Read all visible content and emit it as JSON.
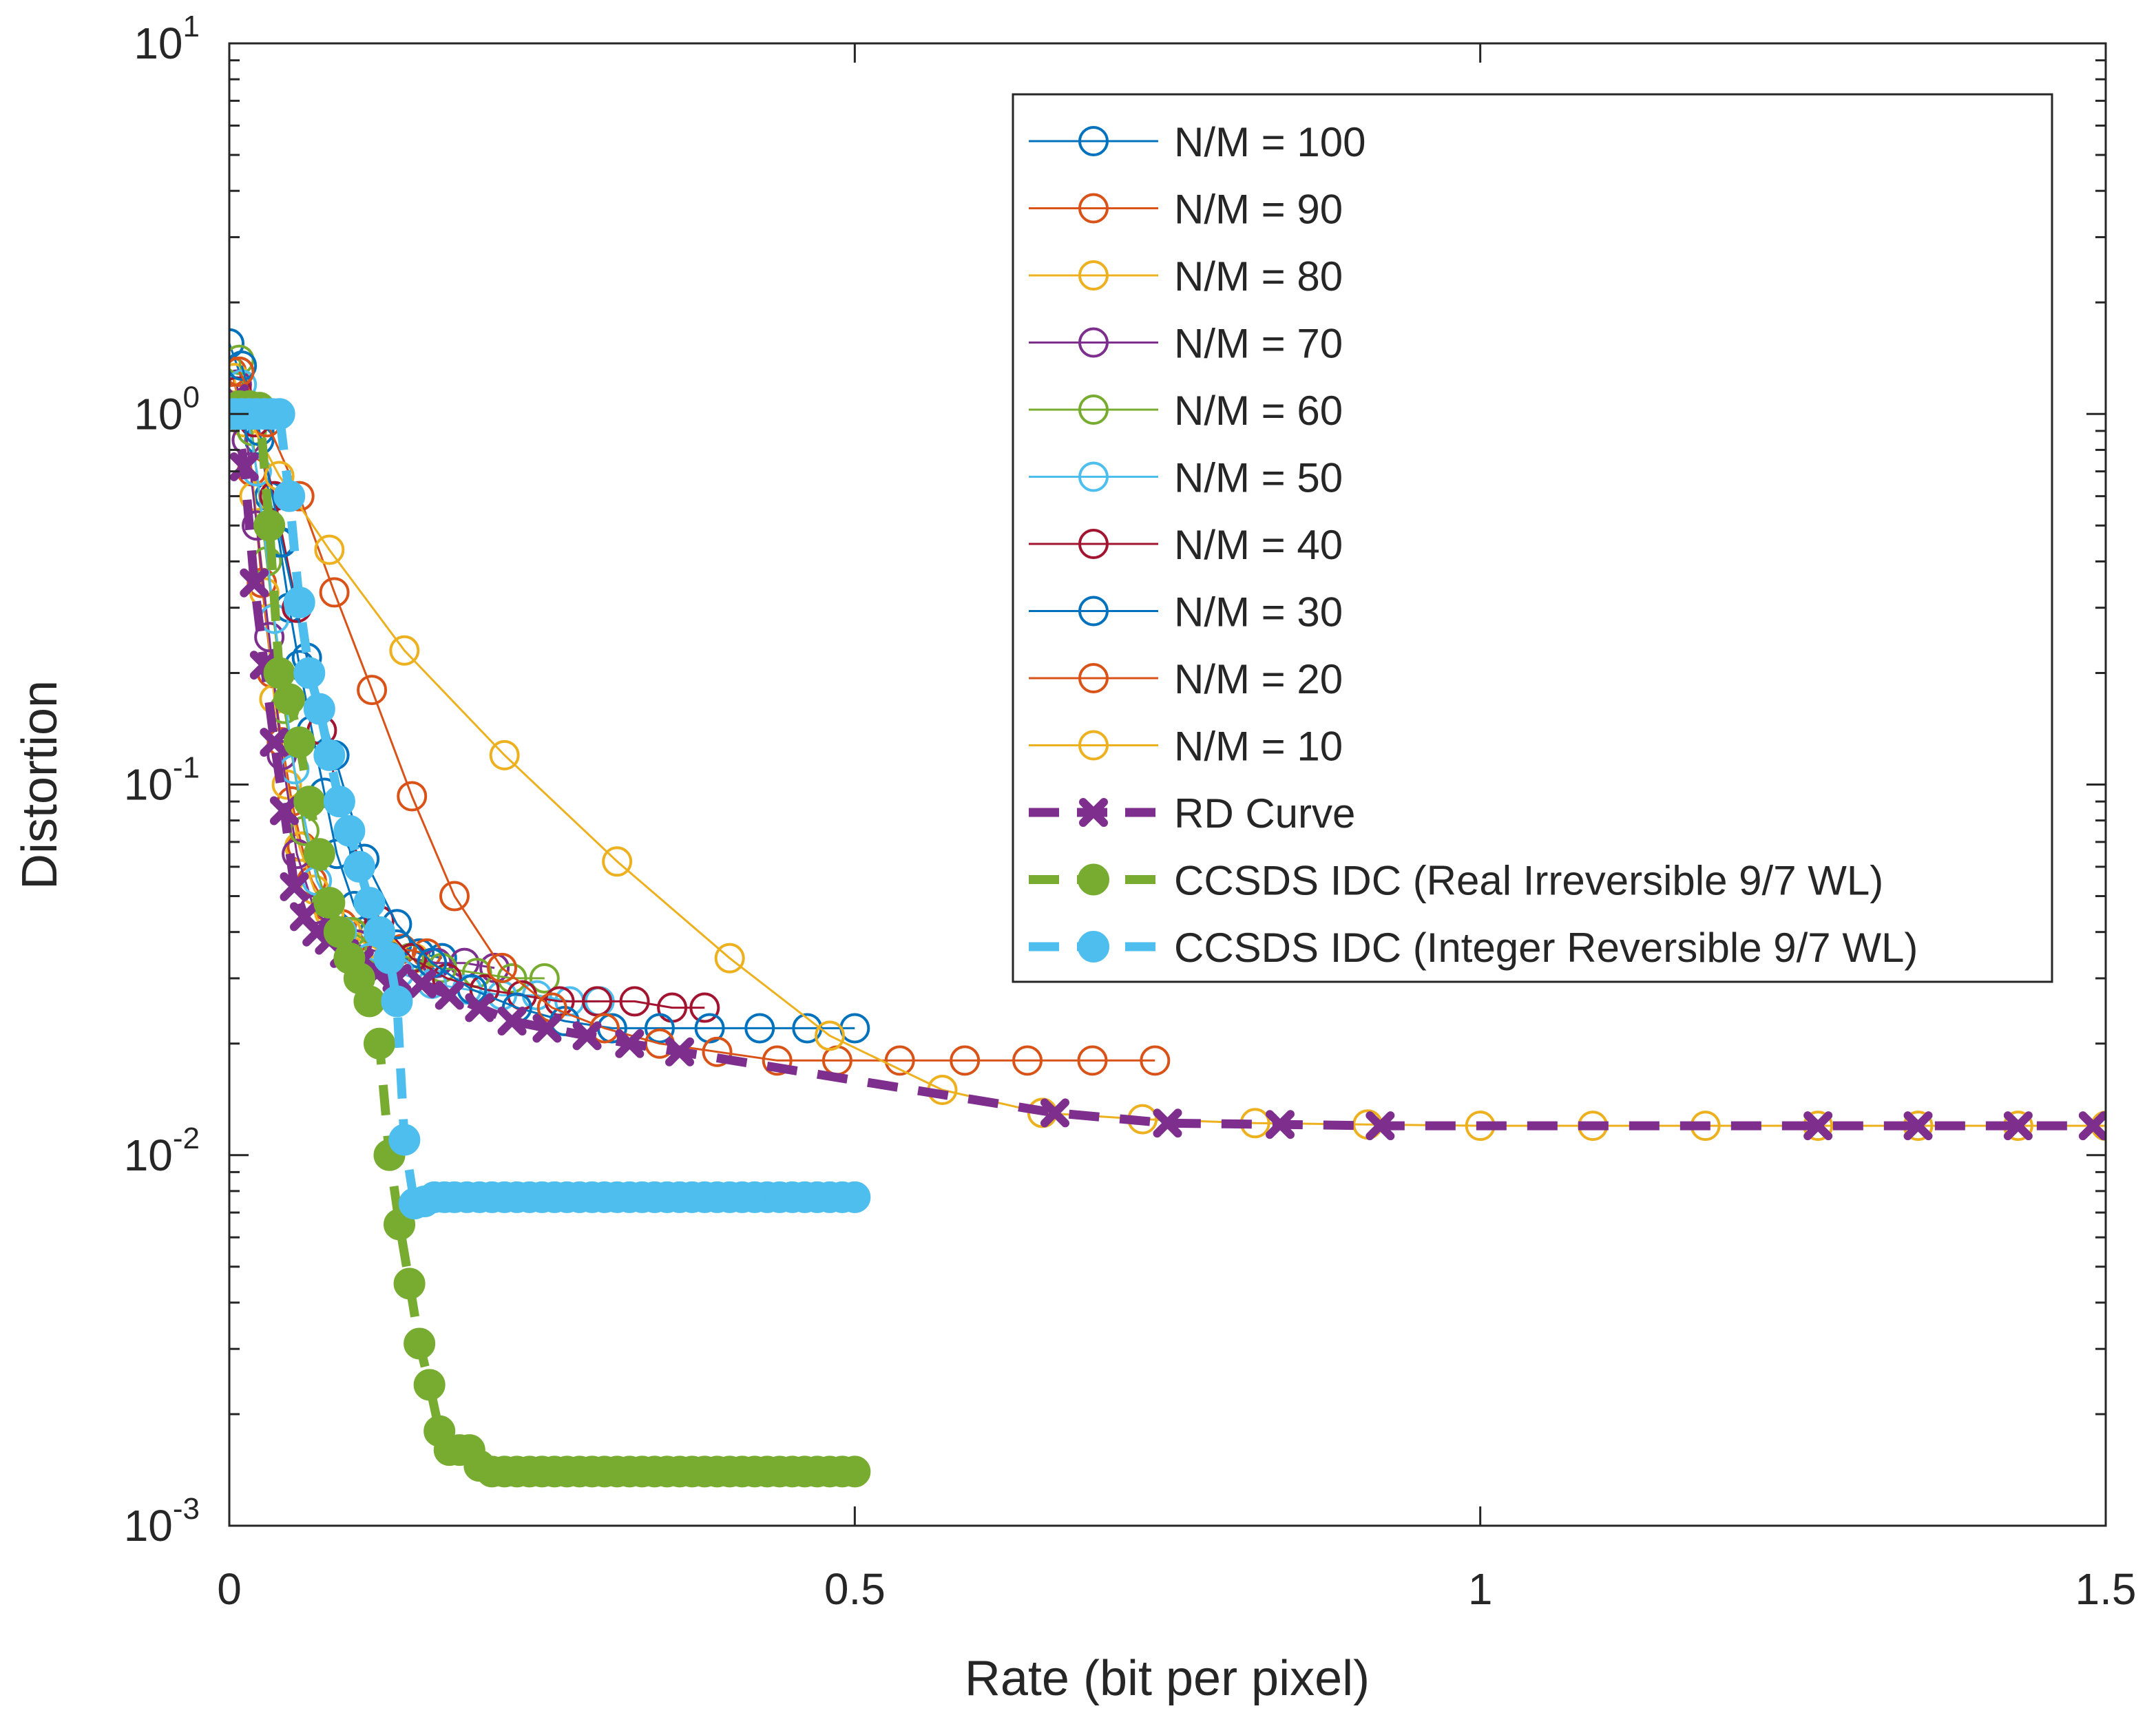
{
  "chart_data": {
    "type": "line",
    "title": "",
    "xlabel": "Rate (bit per pixel)",
    "ylabel": "Distortion",
    "xscale": "linear",
    "yscale": "log",
    "xlim": [
      0,
      1.5
    ],
    "ylim": [
      0.001,
      10
    ],
    "grid": false,
    "legend_position": "top-right",
    "x_ticks": [
      {
        "value": 0,
        "label": "0"
      },
      {
        "value": 0.5,
        "label": "0.5"
      },
      {
        "value": 1,
        "label": "1"
      },
      {
        "value": 1.5,
        "label": "1.5"
      }
    ],
    "y_ticks": [
      {
        "value": 0.001,
        "base": "10",
        "exp": "-3"
      },
      {
        "value": 0.01,
        "base": "10",
        "exp": "-2"
      },
      {
        "value": 0.1,
        "base": "10",
        "exp": "-1"
      },
      {
        "value": 1,
        "base": "10",
        "exp": "0"
      },
      {
        "value": 10,
        "base": "10",
        "exp": "1"
      }
    ],
    "series": [
      {
        "name": "N/M = 100",
        "color": "#0072BD",
        "marker": "circle",
        "line": "solid",
        "x": [
          0.0,
          0.008,
          0.016,
          0.024,
          0.032,
          0.04,
          0.048,
          0.056,
          0.066,
          0.076,
          0.086,
          0.1,
          0.116,
          0.134,
          0.152,
          0.17
        ],
        "y": [
          1.55,
          1.3,
          1.05,
          0.85,
          0.6,
          0.45,
          0.3,
          0.21,
          0.14,
          0.095,
          0.065,
          0.047,
          0.04,
          0.037,
          0.035,
          0.034
        ]
      },
      {
        "name": "N/M = 90",
        "color": "#D95319",
        "marker": "circle",
        "line": "solid",
        "x": [
          0.002,
          0.01,
          0.018,
          0.026,
          0.034,
          0.042,
          0.05,
          0.058,
          0.066,
          0.078,
          0.09,
          0.104,
          0.12,
          0.138,
          0.158
        ],
        "y": [
          1.3,
          1.0,
          0.7,
          0.35,
          0.2,
          0.13,
          0.09,
          0.068,
          0.055,
          0.047,
          0.042,
          0.039,
          0.037,
          0.036,
          0.035
        ]
      },
      {
        "name": "N/M = 80",
        "color": "#EDB120",
        "marker": "circle",
        "line": "solid",
        "x": [
          0.004,
          0.012,
          0.02,
          0.028,
          0.036,
          0.046,
          0.056,
          0.068,
          0.08,
          0.094,
          0.11,
          0.128,
          0.148
        ],
        "y": [
          1.25,
          0.95,
          0.6,
          0.33,
          0.17,
          0.1,
          0.068,
          0.052,
          0.045,
          0.04,
          0.037,
          0.035,
          0.034
        ]
      },
      {
        "name": "N/M = 70",
        "color": "#7E2F8E",
        "marker": "circle",
        "line": "solid",
        "x": [
          0.006,
          0.014,
          0.022,
          0.032,
          0.042,
          0.054,
          0.068,
          0.084,
          0.102,
          0.122,
          0.144,
          0.166,
          0.188,
          0.212
        ],
        "y": [
          1.2,
          0.85,
          0.5,
          0.25,
          0.12,
          0.065,
          0.046,
          0.04,
          0.037,
          0.035,
          0.034,
          0.033,
          0.033,
          0.032
        ]
      },
      {
        "name": "N/M = 60",
        "color": "#77AC30",
        "marker": "circle",
        "line": "solid",
        "x": [
          0.008,
          0.018,
          0.03,
          0.044,
          0.06,
          0.078,
          0.098,
          0.12,
          0.144,
          0.17,
          0.198,
          0.226,
          0.252
        ],
        "y": [
          1.4,
          0.9,
          0.4,
          0.16,
          0.075,
          0.048,
          0.04,
          0.036,
          0.034,
          0.032,
          0.031,
          0.03,
          0.03
        ]
      },
      {
        "name": "N/M = 50",
        "color": "#4DBEEE",
        "marker": "circle",
        "line": "solid",
        "x": [
          0.01,
          0.022,
          0.036,
          0.052,
          0.07,
          0.09,
          0.112,
          0.136,
          0.162,
          0.19,
          0.218,
          0.246,
          0.272,
          0.296
        ],
        "y": [
          1.2,
          0.7,
          0.28,
          0.11,
          0.055,
          0.04,
          0.034,
          0.031,
          0.029,
          0.028,
          0.027,
          0.027,
          0.026,
          0.026
        ]
      },
      {
        "name": "N/M = 40",
        "color": "#A2142F",
        "marker": "circle",
        "line": "solid",
        "x": [
          0.006,
          0.02,
          0.036,
          0.054,
          0.074,
          0.096,
          0.12,
          0.146,
          0.174,
          0.204,
          0.234,
          0.264,
          0.294,
          0.324,
          0.354,
          0.38
        ],
        "y": [
          1.15,
          0.95,
          0.6,
          0.3,
          0.14,
          0.075,
          0.043,
          0.034,
          0.03,
          0.028,
          0.027,
          0.026,
          0.026,
          0.026,
          0.025,
          0.025
        ]
      },
      {
        "name": "N/M = 30",
        "color": "#0072BD",
        "marker": "circle",
        "line": "solid",
        "x": [
          0.01,
          0.024,
          0.042,
          0.062,
          0.084,
          0.108,
          0.134,
          0.162,
          0.194,
          0.23,
          0.268,
          0.306,
          0.344,
          0.384,
          0.424,
          0.462,
          0.5
        ],
        "y": [
          1.35,
          0.9,
          0.45,
          0.22,
          0.12,
          0.063,
          0.042,
          0.033,
          0.028,
          0.025,
          0.023,
          0.022,
          0.022,
          0.022,
          0.022,
          0.022,
          0.022
        ]
      },
      {
        "name": "N/M = 20",
        "color": "#D95319",
        "marker": "circle",
        "line": "solid",
        "x": [
          0.008,
          0.03,
          0.056,
          0.084,
          0.114,
          0.146,
          0.18,
          0.218,
          0.258,
          0.3,
          0.344,
          0.39,
          0.438,
          0.486,
          0.536,
          0.588,
          0.638,
          0.69,
          0.74
        ],
        "y": [
          1.3,
          0.95,
          0.6,
          0.33,
          0.18,
          0.093,
          0.05,
          0.032,
          0.025,
          0.022,
          0.02,
          0.019,
          0.018,
          0.018,
          0.018,
          0.018,
          0.018,
          0.018,
          0.018
        ]
      },
      {
        "name": "N/M = 10",
        "color": "#EDB120",
        "marker": "circle",
        "line": "solid",
        "x": [
          0.01,
          0.04,
          0.08,
          0.14,
          0.22,
          0.31,
          0.4,
          0.48,
          0.57,
          0.65,
          0.73,
          0.82,
          0.91,
          1.0,
          1.09,
          1.18,
          1.27,
          1.35,
          1.43,
          1.5
        ],
        "y": [
          1.05,
          0.68,
          0.43,
          0.23,
          0.12,
          0.062,
          0.034,
          0.021,
          0.015,
          0.013,
          0.0125,
          0.0122,
          0.0121,
          0.012,
          0.012,
          0.012,
          0.012,
          0.012,
          0.012,
          0.012
        ]
      },
      {
        "name": "RD Curve",
        "color": "#7E2F8E",
        "marker": "x",
        "line": "dashed",
        "x": [
          0.004,
          0.012,
          0.02,
          0.028,
          0.036,
          0.044,
          0.052,
          0.06,
          0.07,
          0.08,
          0.092,
          0.104,
          0.118,
          0.134,
          0.154,
          0.176,
          0.2,
          0.226,
          0.254,
          0.286,
          0.32,
          0.36,
          0.66,
          0.75,
          0.84,
          0.92,
          1.27,
          1.35,
          1.43,
          1.49
        ],
        "y": [
          1.1,
          0.72,
          0.35,
          0.21,
          0.13,
          0.085,
          0.053,
          0.044,
          0.04,
          0.038,
          0.035,
          0.033,
          0.031,
          0.03,
          0.029,
          0.027,
          0.025,
          0.023,
          0.022,
          0.021,
          0.02,
          0.019,
          0.013,
          0.0122,
          0.0121,
          0.012,
          0.012,
          0.012,
          0.012,
          0.012
        ]
      },
      {
        "name": "CCSDS IDC (Real Irreversible 9/7 WL)",
        "color": "#77AC30",
        "marker": "dot",
        "line": "dashed",
        "x": [
          0.008,
          0.016,
          0.024,
          0.032,
          0.04,
          0.048,
          0.056,
          0.064,
          0.072,
          0.08,
          0.088,
          0.096,
          0.104,
          0.112,
          0.12,
          0.128,
          0.136,
          0.144,
          0.152,
          0.16,
          0.168,
          0.176,
          0.184,
          0.192,
          0.2,
          0.21,
          0.22,
          0.23,
          0.24,
          0.25,
          0.26,
          0.27,
          0.28,
          0.29,
          0.3,
          0.31,
          0.32,
          0.33,
          0.34,
          0.35,
          0.36,
          0.37,
          0.38,
          0.39,
          0.4,
          0.41,
          0.42,
          0.43,
          0.44,
          0.45,
          0.46,
          0.47,
          0.48,
          0.49,
          0.5
        ],
        "y": [
          1.05,
          1.05,
          1.04,
          0.5,
          0.2,
          0.17,
          0.13,
          0.09,
          0.065,
          0.048,
          0.04,
          0.034,
          0.03,
          0.026,
          0.02,
          0.01,
          0.0065,
          0.0045,
          0.0031,
          0.0024,
          0.0018,
          0.0016,
          0.0016,
          0.0016,
          0.00145,
          0.0014,
          0.0014,
          0.0014,
          0.0014,
          0.0014,
          0.0014,
          0.0014,
          0.0014,
          0.0014,
          0.0014,
          0.0014,
          0.0014,
          0.0014,
          0.0014,
          0.0014,
          0.0014,
          0.0014,
          0.0014,
          0.0014,
          0.0014,
          0.0014,
          0.0014,
          0.0014,
          0.0014,
          0.0014,
          0.0014,
          0.0014,
          0.0014,
          0.0014,
          0.0014
        ]
      },
      {
        "name": "CCSDS IDC (Integer Reversible 9/7 WL)",
        "color": "#4DBEEE",
        "marker": "dot",
        "line": "dashed",
        "x": [
          0.004,
          0.01,
          0.016,
          0.022,
          0.028,
          0.034,
          0.04,
          0.048,
          0.056,
          0.064,
          0.072,
          0.08,
          0.088,
          0.096,
          0.104,
          0.112,
          0.12,
          0.128,
          0.134,
          0.14,
          0.148,
          0.156,
          0.164,
          0.172,
          0.18,
          0.19,
          0.2,
          0.21,
          0.22,
          0.23,
          0.24,
          0.25,
          0.26,
          0.27,
          0.28,
          0.29,
          0.3,
          0.31,
          0.32,
          0.33,
          0.34,
          0.35,
          0.36,
          0.37,
          0.38,
          0.39,
          0.4,
          0.41,
          0.42,
          0.43,
          0.44,
          0.45,
          0.46,
          0.47,
          0.48,
          0.49,
          0.5
        ],
        "y": [
          1.0,
          1.0,
          1.0,
          1.0,
          1.0,
          1.0,
          1.0,
          0.6,
          0.31,
          0.2,
          0.16,
          0.12,
          0.09,
          0.075,
          0.06,
          0.048,
          0.04,
          0.034,
          0.026,
          0.011,
          0.0074,
          0.0075,
          0.0077,
          0.0077,
          0.0077,
          0.0077,
          0.0077,
          0.0077,
          0.0077,
          0.0077,
          0.0077,
          0.0077,
          0.0077,
          0.0077,
          0.0077,
          0.0077,
          0.0077,
          0.0077,
          0.0077,
          0.0077,
          0.0077,
          0.0077,
          0.0077,
          0.0077,
          0.0077,
          0.0077,
          0.0077,
          0.0077,
          0.0077,
          0.0077,
          0.0077,
          0.0077,
          0.0077,
          0.0077,
          0.0077,
          0.0077,
          0.0077
        ]
      }
    ]
  }
}
